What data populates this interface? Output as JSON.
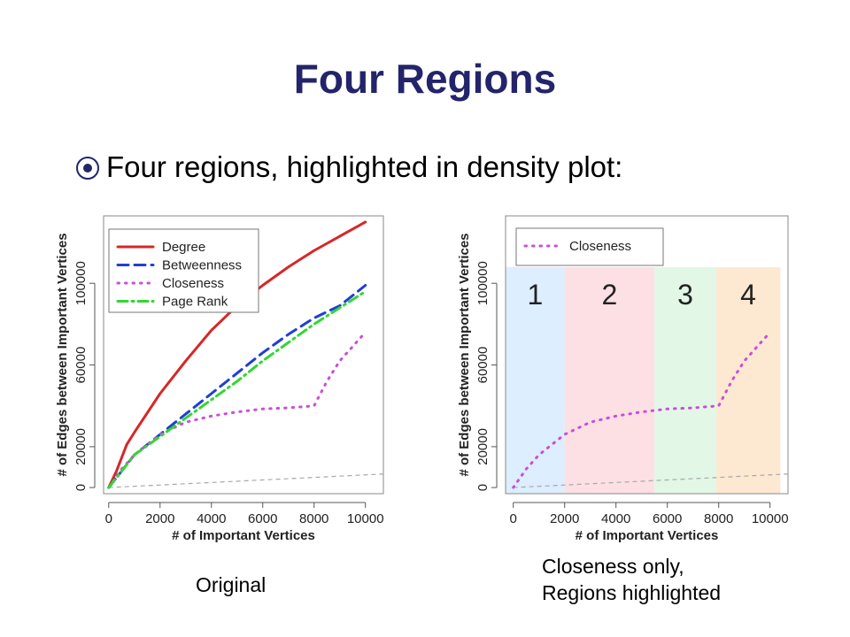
{
  "slide": {
    "title": "Four Regions",
    "bullet": "Four regions, highlighted in density plot:",
    "caption_left": "Original",
    "caption_right_line1": "Closeness only,",
    "caption_right_line2": "Regions highlighted"
  },
  "colors": {
    "title": "#24246b",
    "degree": "#d62728",
    "betweenness": "#1f3fd6",
    "closeness": "#c84fd8",
    "pagerank": "#33d633",
    "reference": "#a8a8a8",
    "region1": "#dceeff",
    "region2": "#fde0e4",
    "region3": "#e2f7e6",
    "region4": "#fde8d2"
  },
  "chart_data": [
    {
      "type": "line",
      "xlabel": "# of Important Vertices",
      "ylabel": "# of Edges between Important Vertices",
      "xlim": [
        -200,
        10700
      ],
      "ylim": [
        -3000,
        133000
      ],
      "xticks": [
        0,
        2000,
        4000,
        6000,
        8000,
        10000
      ],
      "yticks": [
        0,
        20000,
        60000,
        100000
      ],
      "legend": "top-left",
      "series": [
        {
          "name": "Degree",
          "style": "solid",
          "color_key": "degree",
          "x": [
            0,
            300,
            700,
            1000,
            2000,
            3000,
            4000,
            5000,
            6000,
            7000,
            8000,
            9000,
            10000
          ],
          "y": [
            0,
            8000,
            21000,
            27000,
            46000,
            62000,
            77000,
            89000,
            99000,
            108000,
            116000,
            123000,
            130000
          ]
        },
        {
          "name": "Betweenness",
          "style": "dashed",
          "color_key": "betweenness",
          "x": [
            0,
            500,
            1000,
            2000,
            3000,
            4000,
            5000,
            6000,
            7000,
            8000,
            9000,
            10000
          ],
          "y": [
            0,
            8000,
            16000,
            26000,
            36000,
            46000,
            56000,
            66000,
            75000,
            83000,
            89000,
            99000
          ]
        },
        {
          "name": "Closeness",
          "style": "dotted",
          "color_key": "closeness",
          "x": [
            0,
            500,
            1000,
            1500,
            2000,
            3000,
            4000,
            5000,
            6000,
            7000,
            8000,
            8500,
            9000,
            9500,
            10000
          ],
          "y": [
            0,
            9000,
            16000,
            21000,
            26000,
            32000,
            35000,
            37000,
            38500,
            39000,
            40000,
            52000,
            62000,
            69000,
            76000
          ]
        },
        {
          "name": "Page Rank",
          "style": "dashdot",
          "color_key": "pagerank",
          "x": [
            0,
            500,
            1000,
            2000,
            3000,
            4000,
            5000,
            6000,
            7000,
            8000,
            9000,
            10000
          ],
          "y": [
            0,
            8000,
            16000,
            25000,
            34000,
            43000,
            52000,
            62000,
            71000,
            80000,
            88000,
            96000
          ]
        }
      ]
    },
    {
      "type": "line",
      "xlabel": "# of Important Vertices",
      "ylabel": "# of Edges between Important Vertices",
      "xlim": [
        -300,
        10700
      ],
      "ylim": [
        -3000,
        133000
      ],
      "xticks": [
        0,
        2000,
        4000,
        6000,
        8000,
        10000
      ],
      "yticks": [
        0,
        20000,
        60000,
        100000
      ],
      "legend": "top-left",
      "regions": [
        {
          "label": "1",
          "x0": -300,
          "x1": 2000,
          "color_key": "region1"
        },
        {
          "label": "2",
          "x0": 2000,
          "x1": 5500,
          "color_key": "region2"
        },
        {
          "label": "3",
          "x0": 5500,
          "x1": 7900,
          "color_key": "region3"
        },
        {
          "label": "4",
          "x0": 7900,
          "x1": 10400,
          "color_key": "region4"
        }
      ],
      "series": [
        {
          "name": "Closeness",
          "style": "dotted",
          "color_key": "closeness",
          "x": [
            0,
            500,
            1000,
            1500,
            2000,
            3000,
            4000,
            5000,
            6000,
            7000,
            8000,
            8500,
            9000,
            9500,
            10000
          ],
          "y": [
            0,
            9000,
            16000,
            21000,
            26000,
            32000,
            35000,
            37000,
            38500,
            39000,
            40000,
            52000,
            62000,
            69000,
            76000
          ]
        }
      ]
    }
  ]
}
